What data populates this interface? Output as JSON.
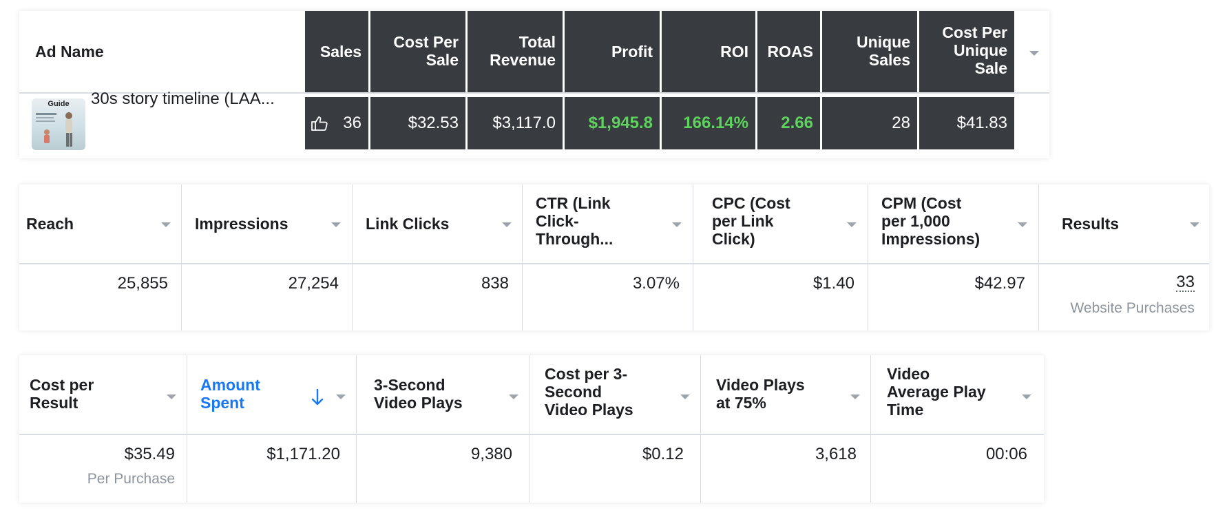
{
  "table1": {
    "headers": {
      "ad_name": "Ad Name",
      "sales": "Sales",
      "cost_per_sale": [
        "Cost Per",
        "Sale"
      ],
      "total_revenue": [
        "Total",
        "Revenue"
      ],
      "profit": "Profit",
      "roi": "ROI",
      "roas": "ROAS",
      "unique_sales": [
        "Unique",
        "Sales"
      ],
      "cost_per_unique_sale": [
        "Cost Per",
        "Unique",
        "Sale"
      ]
    },
    "row": {
      "ad_name": "30s story timeline (LAA...",
      "thumbnail_text": "Guide",
      "sales": "36",
      "cost_per_sale": "$32.53",
      "total_revenue": "$3,117.0",
      "profit": "$1,945.8",
      "roi": "166.14%",
      "roas": "2.66",
      "unique_sales": "28",
      "cost_per_unique_sale": "$41.83"
    },
    "icon": "thumbs-up-icon"
  },
  "table2": {
    "headers": {
      "reach": "Reach",
      "impressions": "Impressions",
      "link_clicks": "Link Clicks",
      "ctr": [
        "CTR (Link",
        "Click-",
        "Through..."
      ],
      "cpc": [
        "CPC (Cost",
        "per Link",
        "Click)"
      ],
      "cpm": [
        "CPM (Cost",
        "per 1,000",
        "Impressions)"
      ],
      "results": "Results"
    },
    "row": {
      "reach": "25,855",
      "impressions": "27,254",
      "link_clicks": "838",
      "ctr": "3.07%",
      "cpc": "$1.40",
      "cpm": "$42.97",
      "results": "33",
      "results_sub": "Website Purchases"
    }
  },
  "table3": {
    "headers": {
      "cost_per_result": [
        "Cost per",
        "Result"
      ],
      "amount_spent": [
        "Amount",
        "Spent"
      ],
      "three_sec_plays": [
        "3-Second",
        "Video Plays"
      ],
      "cost_per_three_sec": [
        "Cost per 3-",
        "Second",
        "Video Plays"
      ],
      "plays_75": [
        "Video Plays",
        "at 75%"
      ],
      "avg_play_time": [
        "Video",
        "Average Play",
        "Time"
      ]
    },
    "row": {
      "cost_per_result": "$35.49",
      "cost_per_result_sub": "Per Purchase",
      "amount_spent": "$1,171.20",
      "three_sec_plays": "9,380",
      "cost_per_three_sec": "$0.12",
      "plays_75": "3,618",
      "avg_play_time": "00:06"
    },
    "sort_icon": "arrow-down-icon"
  },
  "colors": {
    "dark_header": "#383b40",
    "green": "#5ed35e",
    "link_blue": "#1877f2",
    "muted": "#8d949e"
  }
}
